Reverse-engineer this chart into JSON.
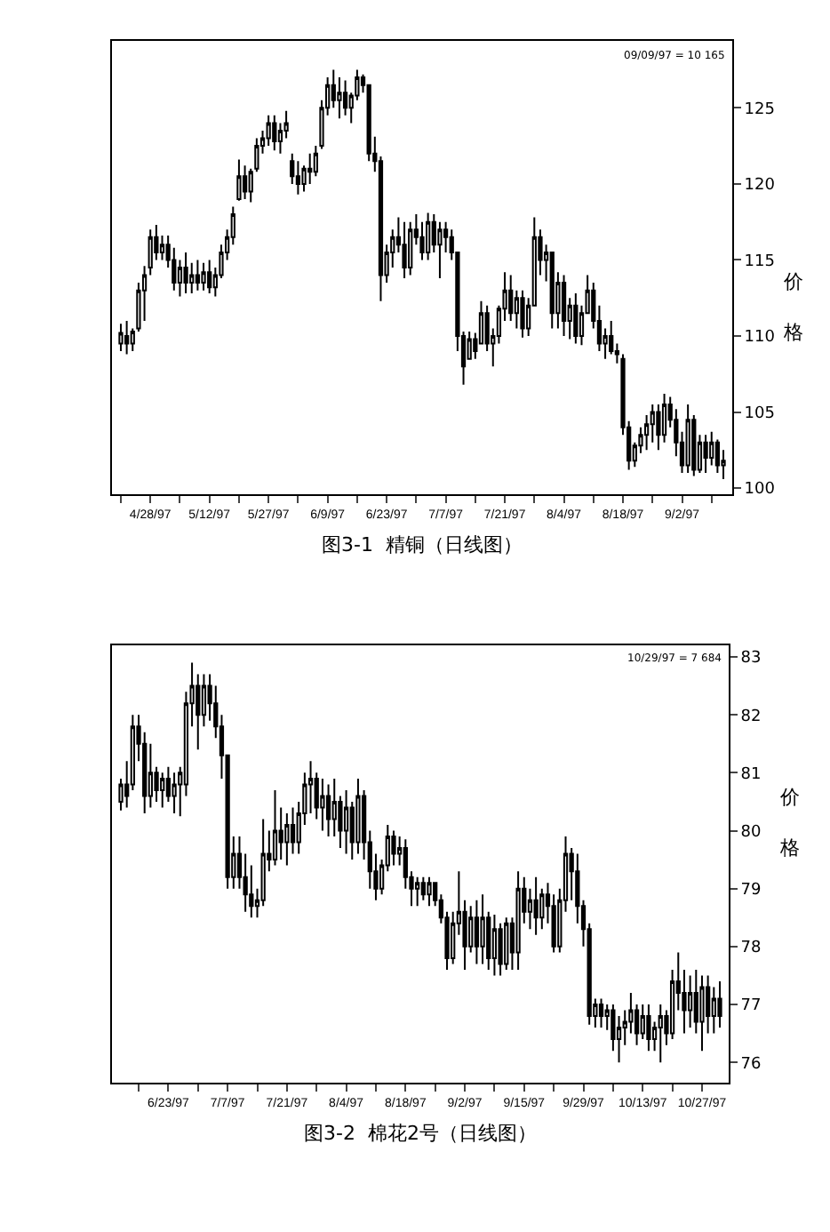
{
  "chart_data": [
    {
      "type": "candlestick",
      "title": "图3-1  精铜（日线图）",
      "ylabel": "价格",
      "annotations": [
        "09/09/97 = 10 165"
      ],
      "categories": [
        null,
        null,
        null,
        null,
        null,
        "4/28/97",
        null,
        null,
        null,
        null,
        null,
        null,
        null,
        null,
        null,
        "5/12/97",
        null,
        null,
        null,
        null,
        null,
        null,
        null,
        null,
        null,
        "5/27/97",
        null,
        null,
        null,
        null,
        null,
        null,
        null,
        null,
        null,
        "6/9/97",
        null,
        null,
        null,
        null,
        null,
        null,
        null,
        null,
        null,
        "6/23/97",
        null,
        null,
        null,
        null,
        null,
        null,
        null,
        null,
        null,
        "7/7/97",
        null,
        null,
        null,
        null,
        null,
        null,
        null,
        null,
        null,
        "7/21/97",
        null,
        null,
        null,
        null,
        null,
        null,
        null,
        null,
        null,
        "8/4/97",
        null,
        null,
        null,
        null,
        null,
        null,
        null,
        null,
        null,
        "8/18/97",
        null,
        null,
        null,
        null,
        null,
        null,
        null,
        null,
        null,
        "9/2/97",
        null,
        null,
        null,
        null,
        null,
        null,
        null
      ],
      "color": "#000000",
      "ylim": [
        99.6,
        129.4
      ],
      "yticks": [
        100,
        105,
        110,
        115,
        120,
        125
      ],
      "ohlc": [
        [
          109.5,
          110.8,
          109.0,
          110.2
        ],
        [
          110.0,
          111.0,
          108.8,
          109.5
        ],
        [
          109.5,
          110.5,
          109.0,
          110.3
        ],
        [
          110.5,
          113.5,
          110.3,
          113.0
        ],
        [
          113.0,
          114.6,
          111.0,
          114.0
        ],
        [
          114.5,
          117.0,
          114.0,
          116.5
        ],
        [
          116.5,
          117.3,
          115.0,
          115.5
        ],
        [
          115.5,
          116.6,
          115.0,
          116.0
        ],
        [
          116.0,
          116.6,
          114.5,
          115.0
        ],
        [
          115.0,
          115.8,
          113.0,
          113.5
        ],
        [
          113.5,
          115.0,
          112.6,
          114.5
        ],
        [
          114.5,
          115.5,
          112.8,
          113.5
        ],
        [
          113.5,
          114.8,
          112.8,
          114.0
        ],
        [
          114.0,
          115.0,
          113.0,
          113.5
        ],
        [
          113.5,
          114.8,
          113.0,
          114.2
        ],
        [
          114.2,
          115.0,
          112.8,
          113.2
        ],
        [
          113.2,
          114.5,
          112.6,
          114.0
        ],
        [
          114.0,
          116.0,
          113.8,
          115.5
        ],
        [
          115.5,
          117.0,
          115.0,
          116.5
        ],
        [
          116.5,
          118.5,
          116.0,
          118.0
        ],
        [
          119.0,
          121.6,
          118.9,
          120.5
        ],
        [
          120.5,
          121.2,
          119.0,
          119.5
        ],
        [
          119.5,
          121.0,
          118.8,
          120.8
        ],
        [
          121.0,
          123.0,
          120.8,
          122.5
        ],
        [
          122.5,
          123.5,
          122.0,
          123.0
        ],
        [
          123.0,
          124.5,
          122.5,
          124.0
        ],
        [
          124.0,
          124.5,
          122.2,
          122.8
        ],
        [
          122.8,
          124.0,
          122.0,
          123.5
        ],
        [
          123.5,
          124.8,
          123.0,
          124.0
        ],
        [
          121.5,
          122.0,
          120.0,
          120.5
        ],
        [
          120.5,
          121.5,
          119.3,
          120.0
        ],
        [
          120.0,
          121.2,
          119.5,
          121.0
        ],
        [
          121.0,
          122.0,
          120.0,
          120.8
        ],
        [
          120.8,
          122.5,
          120.5,
          122.0
        ],
        [
          122.5,
          125.5,
          122.3,
          125.0
        ],
        [
          125.0,
          127.0,
          124.5,
          126.5
        ],
        [
          126.5,
          127.5,
          125.0,
          125.5
        ],
        [
          125.5,
          127.0,
          124.3,
          126.0
        ],
        [
          126.0,
          126.8,
          124.5,
          125.0
        ],
        [
          125.0,
          126.0,
          124.0,
          125.8
        ],
        [
          125.8,
          127.5,
          125.5,
          127.0
        ],
        [
          127.0,
          127.2,
          126.0,
          126.5
        ],
        [
          126.5,
          126.5,
          121.5,
          122.0
        ],
        [
          122.0,
          123.1,
          120.8,
          121.5
        ],
        [
          121.5,
          121.8,
          112.3,
          114.0
        ],
        [
          114.0,
          116.0,
          113.5,
          115.5
        ],
        [
          115.5,
          117.0,
          114.5,
          116.5
        ],
        [
          116.5,
          117.8,
          115.5,
          116.0
        ],
        [
          116.0,
          117.5,
          113.8,
          114.5
        ],
        [
          114.5,
          117.5,
          114.0,
          117.0
        ],
        [
          117.0,
          118.0,
          116.0,
          116.5
        ],
        [
          116.5,
          117.5,
          115.0,
          115.5
        ],
        [
          115.5,
          118.1,
          115.0,
          117.5
        ],
        [
          117.5,
          118.0,
          115.5,
          116.0
        ],
        [
          116.0,
          117.5,
          113.8,
          117.0
        ],
        [
          117.0,
          117.5,
          115.5,
          116.5
        ],
        [
          116.5,
          117.0,
          115.0,
          115.5
        ],
        [
          115.5,
          115.5,
          109.0,
          110.0
        ],
        [
          110.0,
          110.3,
          106.8,
          108.0
        ],
        [
          108.5,
          110.3,
          108.5,
          109.8
        ],
        [
          109.8,
          110.2,
          108.5,
          109.0
        ],
        [
          109.5,
          112.3,
          109.5,
          111.5
        ],
        [
          111.5,
          112.0,
          109.0,
          109.5
        ],
        [
          109.5,
          110.5,
          108.0,
          110.0
        ],
        [
          110.0,
          112.0,
          109.5,
          111.8
        ],
        [
          111.8,
          114.2,
          111.0,
          113.0
        ],
        [
          113.0,
          114.0,
          111.0,
          111.5
        ],
        [
          111.5,
          113.0,
          110.5,
          112.5
        ],
        [
          112.5,
          113.0,
          109.9,
          110.5
        ],
        [
          110.5,
          112.5,
          110.0,
          112.0
        ],
        [
          112.0,
          117.8,
          112.0,
          116.5
        ],
        [
          116.5,
          117.0,
          114.0,
          115.0
        ],
        [
          115.0,
          116.0,
          113.6,
          115.5
        ],
        [
          115.5,
          115.5,
          110.5,
          111.5
        ],
        [
          111.5,
          114.2,
          110.5,
          113.5
        ],
        [
          113.5,
          114.0,
          110.0,
          111.0
        ],
        [
          111.0,
          112.5,
          109.8,
          112.0
        ],
        [
          112.0,
          112.8,
          109.5,
          110.0
        ],
        [
          110.0,
          112.0,
          109.4,
          111.5
        ],
        [
          111.5,
          114.0,
          111.5,
          113.0
        ],
        [
          113.0,
          113.5,
          110.5,
          111.0
        ],
        [
          111.0,
          112.0,
          109.0,
          109.5
        ],
        [
          109.5,
          110.5,
          108.5,
          110.0
        ],
        [
          110.0,
          111.0,
          108.8,
          109.0
        ],
        [
          109.0,
          109.5,
          108.2,
          108.8
        ],
        [
          108.5,
          108.8,
          103.5,
          104.0
        ],
        [
          104.0,
          104.4,
          101.2,
          101.8
        ],
        [
          101.8,
          103.0,
          101.4,
          102.8
        ],
        [
          102.8,
          104.0,
          102.3,
          103.5
        ],
        [
          103.5,
          104.8,
          102.5,
          104.2
        ],
        [
          104.2,
          105.5,
          103.0,
          105.0
        ],
        [
          105.0,
          105.5,
          102.5,
          103.5
        ],
        [
          103.5,
          106.2,
          103.0,
          105.5
        ],
        [
          105.5,
          106.0,
          104.0,
          104.5
        ],
        [
          104.5,
          105.2,
          102.1,
          103.0
        ],
        [
          103.0,
          103.7,
          101.0,
          101.5
        ],
        [
          101.5,
          105.5,
          101.0,
          104.5
        ],
        [
          104.5,
          104.8,
          100.8,
          101.2
        ],
        [
          101.2,
          103.5,
          101.0,
          103.0
        ],
        [
          103.0,
          103.5,
          101.0,
          102.0
        ],
        [
          102.0,
          103.7,
          101.5,
          103.0
        ],
        [
          103.0,
          103.2,
          101.0,
          101.5
        ],
        [
          101.5,
          102.5,
          100.6,
          101.8
        ]
      ]
    },
    {
      "type": "candlestick",
      "title": "图3-2  棉花2号（日线图）",
      "ylabel": "价格",
      "annotations": [
        "10/29/97 = 7 684"
      ],
      "categories": [
        null,
        null,
        null,
        null,
        null,
        null,
        null,
        null,
        "6/23/97",
        null,
        null,
        null,
        null,
        null,
        null,
        null,
        null,
        null,
        "7/7/97",
        null,
        null,
        null,
        null,
        null,
        null,
        null,
        null,
        null,
        "7/21/97",
        null,
        null,
        null,
        null,
        null,
        null,
        null,
        null,
        null,
        "8/4/97",
        null,
        null,
        null,
        null,
        null,
        null,
        null,
        null,
        null,
        "8/18/97",
        null,
        null,
        null,
        null,
        null,
        null,
        null,
        null,
        null,
        "9/2/97",
        null,
        null,
        null,
        null,
        null,
        null,
        null,
        null,
        null,
        "9/15/97",
        null,
        null,
        null,
        null,
        null,
        null,
        null,
        null,
        null,
        "9/29/97",
        null,
        null,
        null,
        null,
        null,
        null,
        null,
        null,
        null,
        "10/13/97",
        null,
        null,
        null,
        null,
        null,
        null,
        null,
        null,
        null,
        "10/27/97",
        null,
        null,
        null
      ],
      "color": "#000000",
      "ylim": [
        75.65,
        83.2
      ],
      "yticks": [
        76,
        77,
        78,
        79,
        80,
        81,
        82,
        83
      ],
      "ohlc": [
        [
          80.5,
          80.9,
          80.35,
          80.8
        ],
        [
          80.8,
          81.2,
          80.4,
          80.6
        ],
        [
          80.8,
          82.0,
          80.7,
          81.8
        ],
        [
          81.8,
          82.0,
          81.2,
          81.5
        ],
        [
          81.5,
          81.7,
          80.3,
          80.6
        ],
        [
          80.6,
          81.5,
          80.4,
          81.0
        ],
        [
          81.0,
          81.1,
          80.5,
          80.7
        ],
        [
          80.7,
          81.0,
          80.4,
          80.9
        ],
        [
          80.9,
          81.1,
          80.5,
          80.6
        ],
        [
          80.6,
          81.0,
          80.3,
          80.8
        ],
        [
          80.8,
          81.1,
          80.25,
          81.0
        ],
        [
          80.8,
          82.4,
          80.6,
          82.2
        ],
        [
          82.2,
          82.9,
          81.8,
          82.5
        ],
        [
          82.5,
          82.7,
          81.4,
          82.0
        ],
        [
          82.0,
          82.7,
          81.8,
          82.5
        ],
        [
          82.5,
          82.7,
          81.9,
          82.2
        ],
        [
          82.2,
          82.5,
          81.6,
          81.8
        ],
        [
          81.8,
          82.0,
          80.9,
          81.3
        ],
        [
          81.3,
          81.3,
          79.0,
          79.2
        ],
        [
          79.2,
          79.9,
          79.0,
          79.6
        ],
        [
          79.6,
          79.9,
          79.0,
          79.2
        ],
        [
          79.2,
          79.6,
          78.6,
          78.9
        ],
        [
          78.9,
          79.4,
          78.5,
          78.7
        ],
        [
          78.7,
          79.0,
          78.5,
          78.8
        ],
        [
          78.8,
          80.2,
          78.7,
          79.6
        ],
        [
          79.6,
          80.0,
          79.3,
          79.5
        ],
        [
          79.5,
          80.7,
          79.4,
          80.0
        ],
        [
          80.0,
          80.4,
          79.5,
          79.8
        ],
        [
          79.8,
          80.3,
          79.4,
          80.1
        ],
        [
          80.1,
          80.4,
          79.6,
          79.8
        ],
        [
          79.8,
          80.5,
          79.6,
          80.3
        ],
        [
          80.3,
          81.0,
          80.1,
          80.8
        ],
        [
          80.8,
          81.2,
          80.3,
          80.9
        ],
        [
          80.9,
          81.0,
          80.2,
          80.4
        ],
        [
          80.4,
          80.9,
          80.0,
          80.6
        ],
        [
          80.6,
          80.8,
          79.9,
          80.2
        ],
        [
          80.2,
          80.9,
          79.9,
          80.5
        ],
        [
          80.5,
          80.6,
          79.7,
          80.0
        ],
        [
          80.0,
          80.7,
          79.6,
          80.4
        ],
        [
          80.4,
          80.5,
          79.5,
          79.8
        ],
        [
          79.8,
          80.9,
          79.6,
          80.6
        ],
        [
          80.6,
          80.7,
          79.5,
          79.8
        ],
        [
          79.8,
          80.0,
          79.0,
          79.3
        ],
        [
          79.3,
          79.6,
          78.8,
          79.0
        ],
        [
          79.0,
          79.5,
          78.9,
          79.4
        ],
        [
          79.4,
          80.1,
          79.3,
          79.9
        ],
        [
          79.9,
          80.0,
          79.4,
          79.6
        ],
        [
          79.6,
          79.9,
          79.4,
          79.7
        ],
        [
          79.7,
          79.85,
          79.0,
          79.2
        ],
        [
          79.2,
          79.3,
          78.7,
          79.0
        ],
        [
          79.0,
          79.2,
          78.7,
          79.1
        ],
        [
          79.1,
          79.2,
          78.8,
          78.9
        ],
        [
          78.9,
          79.2,
          78.7,
          79.1
        ],
        [
          79.1,
          79.1,
          78.7,
          78.8
        ],
        [
          78.8,
          78.9,
          78.4,
          78.5
        ],
        [
          78.5,
          78.6,
          77.6,
          77.8
        ],
        [
          77.8,
          78.6,
          77.7,
          78.4
        ],
        [
          78.4,
          79.3,
          78.2,
          78.6
        ],
        [
          78.6,
          78.8,
          77.6,
          78.0
        ],
        [
          78.0,
          78.7,
          77.9,
          78.5
        ],
        [
          78.5,
          78.8,
          77.7,
          78.0
        ],
        [
          78.0,
          78.9,
          77.7,
          78.5
        ],
        [
          78.5,
          78.6,
          77.6,
          77.8
        ],
        [
          77.8,
          78.55,
          77.5,
          78.3
        ],
        [
          78.3,
          78.4,
          77.5,
          77.7
        ],
        [
          77.7,
          78.5,
          77.6,
          78.4
        ],
        [
          78.4,
          78.5,
          77.6,
          77.9
        ],
        [
          77.9,
          79.3,
          77.6,
          79.0
        ],
        [
          79.0,
          79.2,
          78.4,
          78.6
        ],
        [
          78.6,
          79.0,
          78.3,
          78.8
        ],
        [
          78.8,
          79.2,
          78.2,
          78.5
        ],
        [
          78.5,
          79.0,
          78.3,
          78.9
        ],
        [
          78.9,
          79.1,
          78.4,
          78.7
        ],
        [
          78.7,
          78.9,
          77.9,
          78.0
        ],
        [
          78.0,
          79.0,
          77.9,
          78.8
        ],
        [
          78.8,
          79.9,
          78.6,
          79.6
        ],
        [
          79.6,
          79.7,
          78.8,
          79.3
        ],
        [
          79.3,
          79.6,
          78.4,
          78.7
        ],
        [
          78.7,
          78.8,
          78.0,
          78.3
        ],
        [
          78.3,
          78.4,
          76.65,
          76.8
        ],
        [
          76.8,
          77.1,
          76.6,
          77.0
        ],
        [
          77.0,
          77.1,
          76.6,
          76.8
        ],
        [
          76.8,
          77.0,
          76.56,
          76.9
        ],
        [
          76.9,
          77.0,
          76.2,
          76.4
        ],
        [
          76.4,
          76.8,
          76.0,
          76.6
        ],
        [
          76.6,
          76.9,
          76.3,
          76.7
        ],
        [
          76.7,
          77.2,
          76.5,
          76.9
        ],
        [
          76.9,
          77.0,
          76.3,
          76.5
        ],
        [
          76.5,
          77.0,
          76.4,
          76.8
        ],
        [
          76.8,
          77.0,
          76.2,
          76.4
        ],
        [
          76.4,
          76.7,
          76.2,
          76.6
        ],
        [
          76.6,
          77.0,
          76.0,
          76.8
        ],
        [
          76.8,
          76.9,
          76.3,
          76.5
        ],
        [
          76.5,
          77.6,
          76.4,
          77.4
        ],
        [
          77.4,
          77.9,
          76.9,
          77.2
        ],
        [
          77.2,
          77.6,
          76.5,
          76.9
        ],
        [
          76.9,
          77.5,
          76.6,
          77.2
        ],
        [
          77.2,
          77.6,
          76.5,
          76.7
        ],
        [
          76.7,
          77.5,
          76.2,
          77.3
        ],
        [
          77.3,
          77.5,
          76.5,
          76.8
        ],
        [
          76.8,
          77.3,
          76.5,
          77.1
        ],
        [
          77.1,
          77.4,
          76.6,
          76.8
        ]
      ]
    }
  ]
}
